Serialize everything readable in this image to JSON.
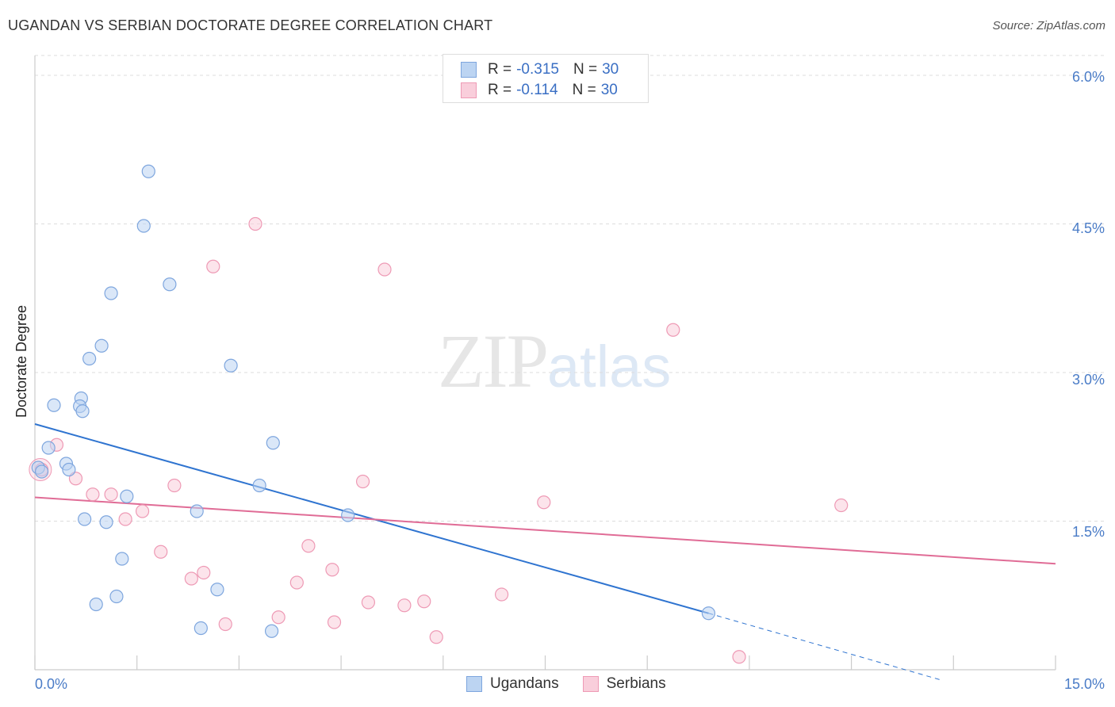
{
  "title": "UGANDAN VS SERBIAN DOCTORATE DEGREE CORRELATION CHART",
  "source": "Source: ZipAtlas.com",
  "watermark": {
    "zip": "ZIP",
    "atlas": "atlas"
  },
  "legend": {
    "ugandan": {
      "r_label": "R =",
      "r_value": "-0.315",
      "n_label": "N =",
      "n_value": "30"
    },
    "serbian": {
      "r_label": "R =",
      "r_value": "-0.114",
      "n_label": "N =",
      "n_value": "30"
    }
  },
  "colors": {
    "ugandan_fill": "#bcd4f2",
    "ugandan_stroke": "#7ea6de",
    "ugandan_line": "#2f74d0",
    "serbian_fill": "#f9cedb",
    "serbian_stroke": "#ee9ab5",
    "serbian_line": "#e06c96"
  },
  "chart_data": {
    "type": "scatter",
    "title": "UGANDAN VS SERBIAN DOCTORATE DEGREE CORRELATION CHART",
    "xlabel": "",
    "ylabel": "Doctorate Degree",
    "xlim": [
      0,
      15
    ],
    "ylim": [
      0,
      6.2
    ],
    "x_tick_labels": [
      "0.0%",
      "15.0%"
    ],
    "y_ticks": [
      1.5,
      3.0,
      4.5,
      6.0
    ],
    "y_tick_labels": [
      "1.5%",
      "3.0%",
      "4.5%",
      "6.0%"
    ],
    "legend_bottom": [
      "Ugandans",
      "Serbians"
    ],
    "series": [
      {
        "name": "Ugandans",
        "points": [
          [
            1.67,
            5.03
          ],
          [
            1.6,
            4.48
          ],
          [
            1.98,
            3.89
          ],
          [
            1.12,
            3.8
          ],
          [
            0.98,
            3.27
          ],
          [
            0.8,
            3.14
          ],
          [
            2.88,
            3.07
          ],
          [
            0.68,
            2.74
          ],
          [
            0.66,
            2.66
          ],
          [
            0.28,
            2.67
          ],
          [
            0.7,
            2.61
          ],
          [
            3.5,
            2.29
          ],
          [
            0.2,
            2.24
          ],
          [
            0.46,
            2.08
          ],
          [
            0.5,
            2.02
          ],
          [
            0.05,
            2.04
          ],
          [
            0.1,
            2.0
          ],
          [
            3.3,
            1.86
          ],
          [
            1.35,
            1.75
          ],
          [
            2.38,
            1.6
          ],
          [
            4.6,
            1.56
          ],
          [
            0.73,
            1.52
          ],
          [
            1.05,
            1.49
          ],
          [
            1.28,
            1.12
          ],
          [
            1.2,
            0.74
          ],
          [
            0.9,
            0.66
          ],
          [
            2.68,
            0.81
          ],
          [
            2.44,
            0.42
          ],
          [
            3.48,
            0.39
          ],
          [
            9.9,
            0.57
          ]
        ],
        "trend": {
          "x": [
            0,
            9.9
          ],
          "y": [
            2.48,
            0.57
          ],
          "dashed_to": [
            13.3,
            -0.1
          ]
        }
      },
      {
        "name": "Serbians",
        "points": [
          [
            3.24,
            4.5
          ],
          [
            2.62,
            4.07
          ],
          [
            5.14,
            4.04
          ],
          [
            9.38,
            3.43
          ],
          [
            0.32,
            2.27
          ],
          [
            0.1,
            2.02
          ],
          [
            0.6,
            1.93
          ],
          [
            2.05,
            1.86
          ],
          [
            4.82,
            1.9
          ],
          [
            0.85,
            1.77
          ],
          [
            1.12,
            1.77
          ],
          [
            7.48,
            1.69
          ],
          [
            11.85,
            1.66
          ],
          [
            1.58,
            1.6
          ],
          [
            1.33,
            1.52
          ],
          [
            1.85,
            1.19
          ],
          [
            4.02,
            1.25
          ],
          [
            2.48,
            0.98
          ],
          [
            2.3,
            0.92
          ],
          [
            4.37,
            1.01
          ],
          [
            3.85,
            0.88
          ],
          [
            6.86,
            0.76
          ],
          [
            5.72,
            0.69
          ],
          [
            4.9,
            0.68
          ],
          [
            5.43,
            0.65
          ],
          [
            3.58,
            0.53
          ],
          [
            4.4,
            0.48
          ],
          [
            2.8,
            0.46
          ],
          [
            5.9,
            0.33
          ],
          [
            10.35,
            0.13
          ]
        ],
        "trend": {
          "x": [
            0,
            15
          ],
          "y": [
            1.74,
            1.07
          ]
        }
      }
    ]
  }
}
